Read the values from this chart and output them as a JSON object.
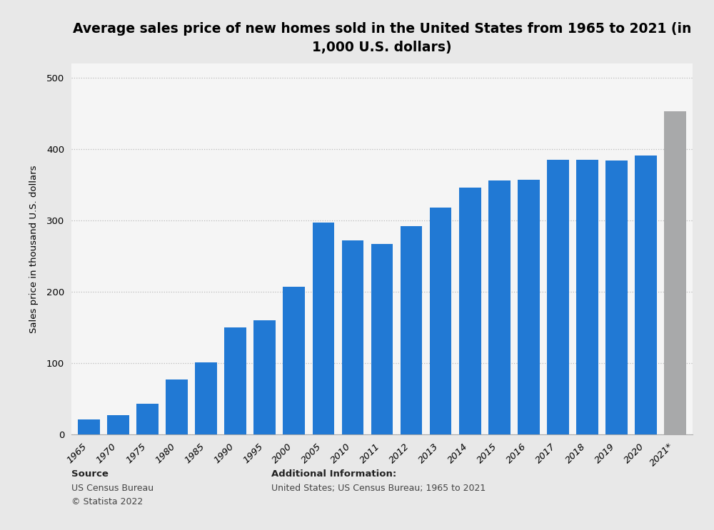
{
  "title": "Average sales price of new homes sold in the United States from 1965 to 2021 (in\n1,000 U.S. dollars)",
  "ylabel": "Sales price in thousand U.S. dollars",
  "categories": [
    "1965",
    "1970",
    "1975",
    "1980",
    "1985",
    "1990",
    "1995",
    "2000",
    "2005",
    "2010",
    "2011",
    "2012",
    "2013",
    "2014",
    "2015",
    "2016",
    "2017",
    "2018",
    "2019",
    "2020",
    "2021*"
  ],
  "values": [
    21,
    27,
    43,
    77,
    101,
    150,
    160,
    207,
    297,
    272,
    267,
    292,
    318,
    346,
    356,
    357,
    385,
    385,
    384,
    391,
    453
  ],
  "bar_colors": [
    "#2179d4",
    "#2179d4",
    "#2179d4",
    "#2179d4",
    "#2179d4",
    "#2179d4",
    "#2179d4",
    "#2179d4",
    "#2179d4",
    "#2179d4",
    "#2179d4",
    "#2179d4",
    "#2179d4",
    "#2179d4",
    "#2179d4",
    "#2179d4",
    "#2179d4",
    "#2179d4",
    "#2179d4",
    "#2179d4",
    "#a8a9aa"
  ],
  "ylim": [
    0,
    520
  ],
  "yticks": [
    0,
    100,
    200,
    300,
    400,
    500
  ],
  "background_color": "#e8e8e8",
  "plot_bg_color": "#f5f5f5",
  "source_label": "Source",
  "source_body": "US Census Bureau\n© Statista 2022",
  "additional_label": "Additional Information:",
  "additional_body": "United States; US Census Bureau; 1965 to 2021",
  "title_fontsize": 13.5,
  "ylabel_fontsize": 9.5,
  "tick_fontsize": 9.5,
  "footer_fontsize": 9,
  "footer_bold_fontsize": 9.5
}
